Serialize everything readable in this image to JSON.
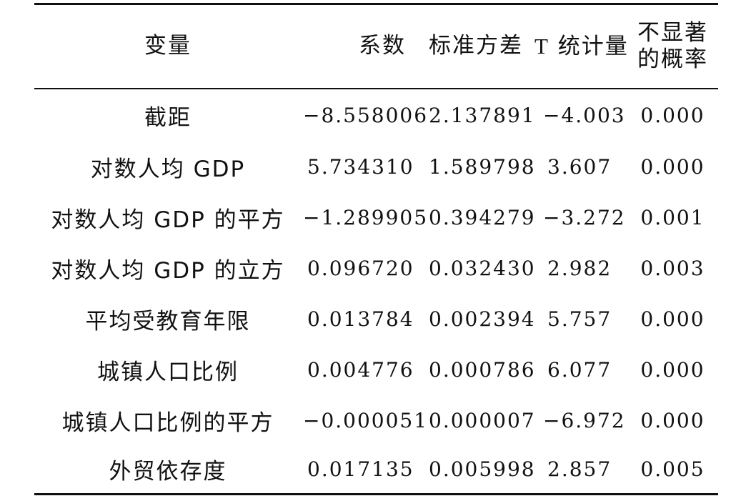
{
  "table": {
    "headers": {
      "variable": "变量",
      "coefficient": "系数",
      "std_error": "标准方差",
      "t_stat_letter": "T",
      "t_stat_rest": "统计量",
      "p_value_line1": "不显著",
      "p_value_line2": "的概率"
    },
    "rows": [
      {
        "variable": "截距",
        "coefficient": "−8.558006",
        "std_error": "2.137891",
        "t_stat": "−4.003",
        "p_value": "0.000"
      },
      {
        "variable": "对数人均 GDP",
        "coefficient": "5.734310",
        "std_error": "1.589798",
        "t_stat": "3.607",
        "p_value": "0.000"
      },
      {
        "variable": "对数人均 GDP 的平方",
        "coefficient": "−1.289905",
        "std_error": "0.394279",
        "t_stat": "−3.272",
        "p_value": "0.001"
      },
      {
        "variable": "对数人均 GDP 的立方",
        "coefficient": "0.096720",
        "std_error": "0.032430",
        "t_stat": "2.982",
        "p_value": "0.003"
      },
      {
        "variable": "平均受教育年限",
        "coefficient": "0.013784",
        "std_error": "0.002394",
        "t_stat": "5.757",
        "p_value": "0.000"
      },
      {
        "variable": "城镇人口比例",
        "coefficient": "0.004776",
        "std_error": "0.000786",
        "t_stat": "6.077",
        "p_value": "0.000"
      },
      {
        "variable": "城镇人口比例的平方",
        "coefficient": "−0.000051",
        "std_error": "0.000007",
        "t_stat": "−6.972",
        "p_value": "0.000"
      },
      {
        "variable": "外贸依存度",
        "coefficient": "0.017135",
        "std_error": "0.005998",
        "t_stat": "2.857",
        "p_value": "0.005"
      }
    ]
  }
}
